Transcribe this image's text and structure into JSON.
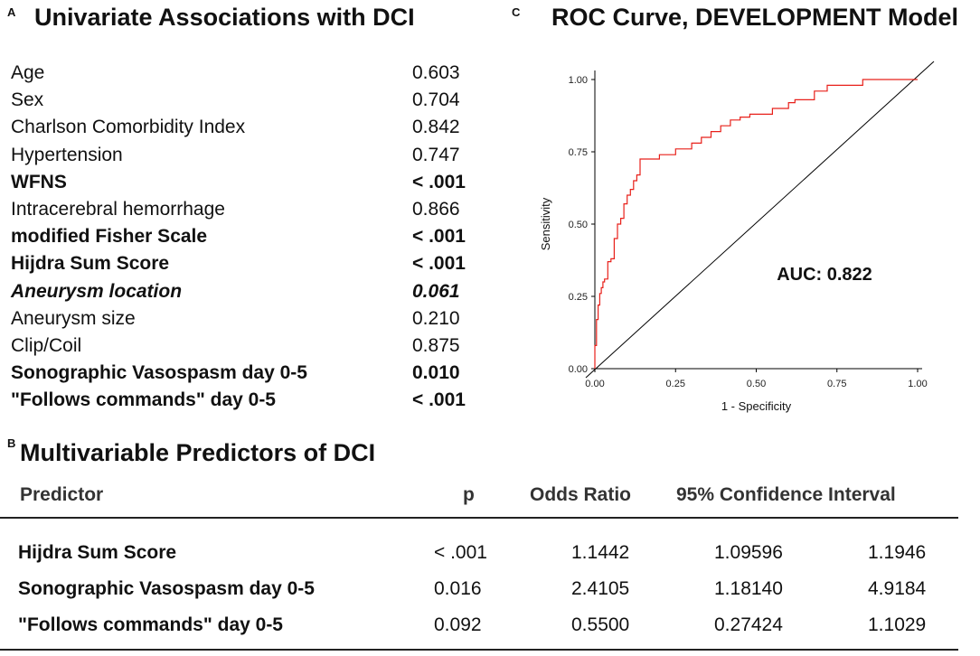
{
  "panel_a": {
    "letter": "A",
    "title": "Univariate Associations with DCI",
    "rows": [
      {
        "label": "Age",
        "value": "0.603",
        "style": "normal"
      },
      {
        "label": "Sex",
        "value": "0.704",
        "style": "normal"
      },
      {
        "label": "Charlson Comorbidity Index",
        "value": "0.842",
        "style": "normal"
      },
      {
        "label": "Hypertension",
        "value": "0.747",
        "style": "normal"
      },
      {
        "label": "WFNS",
        "value": "< .001",
        "style": "bold"
      },
      {
        "label": "Intracerebral hemorrhage",
        "value": "0.866",
        "style": "normal"
      },
      {
        "label": "modified Fisher Scale",
        "value": "< .001",
        "style": "bold"
      },
      {
        "label": "Hijdra Sum Score",
        "value": "< .001",
        "style": "bold"
      },
      {
        "label": "Aneurysm location",
        "value": "0.061",
        "style": "bold-italic"
      },
      {
        "label": "Aneurysm size",
        "value": "0.210",
        "style": "normal"
      },
      {
        "label": "Clip/Coil",
        "value": "0.875",
        "style": "normal"
      },
      {
        "label": "Sonographic Vasospasm day 0-5",
        "value": "0.010",
        "style": "bold"
      },
      {
        "label": "\"Follows commands\" day 0-5",
        "value": "< .001",
        "style": "bold"
      }
    ]
  },
  "panel_b": {
    "letter": "B",
    "title": "Multivariable Predictors of DCI",
    "headers": {
      "predictor": "Predictor",
      "p": "p",
      "odds_ratio": "Odds Ratio",
      "ci": "95% Confidence Interval"
    },
    "rows": [
      {
        "predictor": "Hijdra Sum Score",
        "p": "< .001",
        "odds_ratio": "1.1442",
        "ci_low": "1.09596",
        "ci_high": "1.1946"
      },
      {
        "predictor": "Sonographic Vasospasm day 0-5",
        "p": "0.016",
        "odds_ratio": "2.4105",
        "ci_low": "1.18140",
        "ci_high": "4.9184"
      },
      {
        "predictor": "\"Follows commands\" day 0-5",
        "p": "0.092",
        "odds_ratio": "0.5500",
        "ci_low": "0.27424",
        "ci_high": "1.1029"
      }
    ]
  },
  "panel_c": {
    "letter": "C",
    "title": "ROC Curve, DEVELOPMENT Model",
    "chart_data": {
      "type": "line",
      "title": "ROC Curve, DEVELOPMENT Model",
      "xlabel": "1 - Specificity",
      "ylabel": "Sensitivity",
      "xlim": [
        0,
        1
      ],
      "ylim": [
        0,
        1
      ],
      "xticks": [
        "0.00",
        "0.25",
        "0.50",
        "0.75",
        "1.00"
      ],
      "yticks": [
        "0.00",
        "0.25",
        "0.50",
        "0.75",
        "1.00"
      ],
      "annotation": "AUC: 0.822",
      "colors": {
        "roc": "#e8201a",
        "reference": "#000000"
      },
      "series": [
        {
          "name": "ROC",
          "x": [
            0.0,
            0.0,
            0.005,
            0.005,
            0.01,
            0.01,
            0.015,
            0.015,
            0.02,
            0.02,
            0.025,
            0.025,
            0.03,
            0.03,
            0.04,
            0.04,
            0.05,
            0.05,
            0.06,
            0.06,
            0.07,
            0.07,
            0.08,
            0.08,
            0.09,
            0.09,
            0.1,
            0.1,
            0.11,
            0.11,
            0.12,
            0.12,
            0.13,
            0.13,
            0.14,
            0.14,
            0.2,
            0.2,
            0.25,
            0.25,
            0.3,
            0.3,
            0.33,
            0.33,
            0.36,
            0.36,
            0.39,
            0.39,
            0.42,
            0.42,
            0.45,
            0.45,
            0.48,
            0.48,
            0.55,
            0.55,
            0.6,
            0.6,
            0.62,
            0.62,
            0.68,
            0.68,
            0.72,
            0.72,
            0.83,
            0.83,
            1.0
          ],
          "y": [
            0.0,
            0.08,
            0.08,
            0.17,
            0.17,
            0.22,
            0.22,
            0.26,
            0.26,
            0.28,
            0.28,
            0.3,
            0.3,
            0.31,
            0.31,
            0.37,
            0.37,
            0.38,
            0.38,
            0.45,
            0.45,
            0.5,
            0.5,
            0.52,
            0.52,
            0.57,
            0.57,
            0.6,
            0.6,
            0.62,
            0.62,
            0.65,
            0.65,
            0.67,
            0.67,
            0.725,
            0.725,
            0.74,
            0.74,
            0.76,
            0.76,
            0.78,
            0.78,
            0.8,
            0.8,
            0.82,
            0.82,
            0.84,
            0.84,
            0.86,
            0.86,
            0.87,
            0.87,
            0.88,
            0.88,
            0.9,
            0.9,
            0.92,
            0.92,
            0.93,
            0.93,
            0.96,
            0.96,
            0.98,
            0.98,
            1.0,
            1.0
          ]
        },
        {
          "name": "reference",
          "x": [
            0,
            1
          ],
          "y": [
            0,
            1
          ]
        }
      ]
    }
  }
}
